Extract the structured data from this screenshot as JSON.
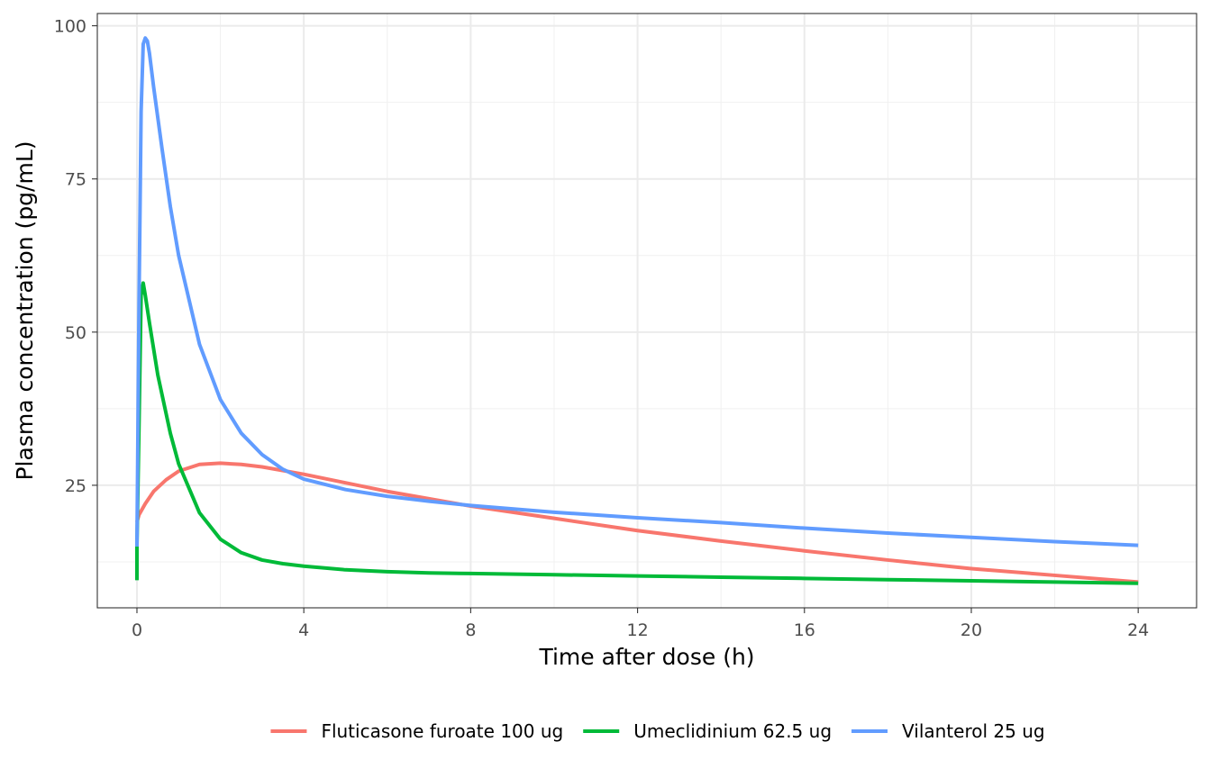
{
  "chart_data": {
    "type": "line",
    "title": "",
    "xlabel": "Time after dose (h)",
    "ylabel": "Plasma concentration (pg/mL)",
    "xlim": [
      -0.95,
      25.4
    ],
    "ylim": [
      5.0,
      102.0
    ],
    "x_ticks": [
      0,
      4,
      8,
      12,
      16,
      20,
      24
    ],
    "x_tick_labels": [
      "0",
      "4",
      "8",
      "12",
      "16",
      "20",
      "24"
    ],
    "y_ticks": [
      25,
      50,
      75,
      100
    ],
    "y_tick_labels": [
      "25",
      "50",
      "75",
      "100"
    ],
    "grid": true,
    "legend_position": "bottom",
    "series": [
      {
        "name": "Fluticasone furoate 100 ug",
        "color": "#F8766D",
        "x": [
          0,
          0.05,
          0.2,
          0.4,
          0.7,
          1.0,
          1.5,
          2.0,
          2.5,
          3.0,
          4.0,
          5.0,
          6.0,
          7.0,
          8.0,
          10.0,
          12.0,
          14.0,
          16.0,
          18.0,
          20.0,
          22.0,
          24.0
        ],
        "y": [
          19.0,
          20.2,
          22.0,
          24.0,
          25.9,
          27.3,
          28.4,
          28.6,
          28.4,
          28.0,
          26.8,
          25.4,
          24.0,
          22.8,
          21.6,
          19.6,
          17.6,
          15.9,
          14.3,
          12.8,
          11.4,
          10.3,
          9.2
        ]
      },
      {
        "name": "Umeclidinium 62.5 ug",
        "color": "#00BA38",
        "x": [
          0,
          0,
          0.05,
          0.1,
          0.15,
          0.2,
          0.3,
          0.5,
          0.8,
          1.0,
          1.5,
          2.0,
          2.5,
          3.0,
          3.5,
          4.0,
          5.0,
          6.0,
          7.0,
          8.0,
          10.0,
          12.0,
          14.0,
          16.0,
          18.0,
          20.0,
          22.0,
          24.0
        ],
        "y": [
          9.5,
          15.0,
          35.0,
          56.0,
          58.0,
          56.0,
          51.5,
          43.0,
          33.5,
          28.5,
          20.5,
          16.2,
          14.0,
          12.8,
          12.2,
          11.8,
          11.2,
          10.9,
          10.7,
          10.6,
          10.4,
          10.2,
          10.0,
          9.8,
          9.6,
          9.4,
          9.2,
          9.0
        ]
      },
      {
        "name": "Vilanterol 25 ug",
        "color": "#619CFF",
        "x": [
          0,
          0.05,
          0.1,
          0.15,
          0.2,
          0.25,
          0.3,
          0.4,
          0.6,
          0.8,
          1.0,
          1.5,
          2.0,
          2.5,
          3.0,
          3.5,
          4.0,
          5.0,
          6.0,
          7.0,
          8.0,
          10.0,
          12.0,
          14.0,
          16.0,
          18.0,
          20.0,
          22.0,
          24.0
        ],
        "y": [
          15.0,
          55.0,
          86.0,
          97.0,
          98.0,
          97.5,
          95.5,
          90.0,
          80.0,
          70.5,
          62.5,
          48.0,
          39.0,
          33.5,
          30.0,
          27.6,
          26.0,
          24.3,
          23.2,
          22.4,
          21.7,
          20.6,
          19.7,
          18.9,
          18.0,
          17.2,
          16.5,
          15.8,
          15.2
        ]
      }
    ]
  }
}
